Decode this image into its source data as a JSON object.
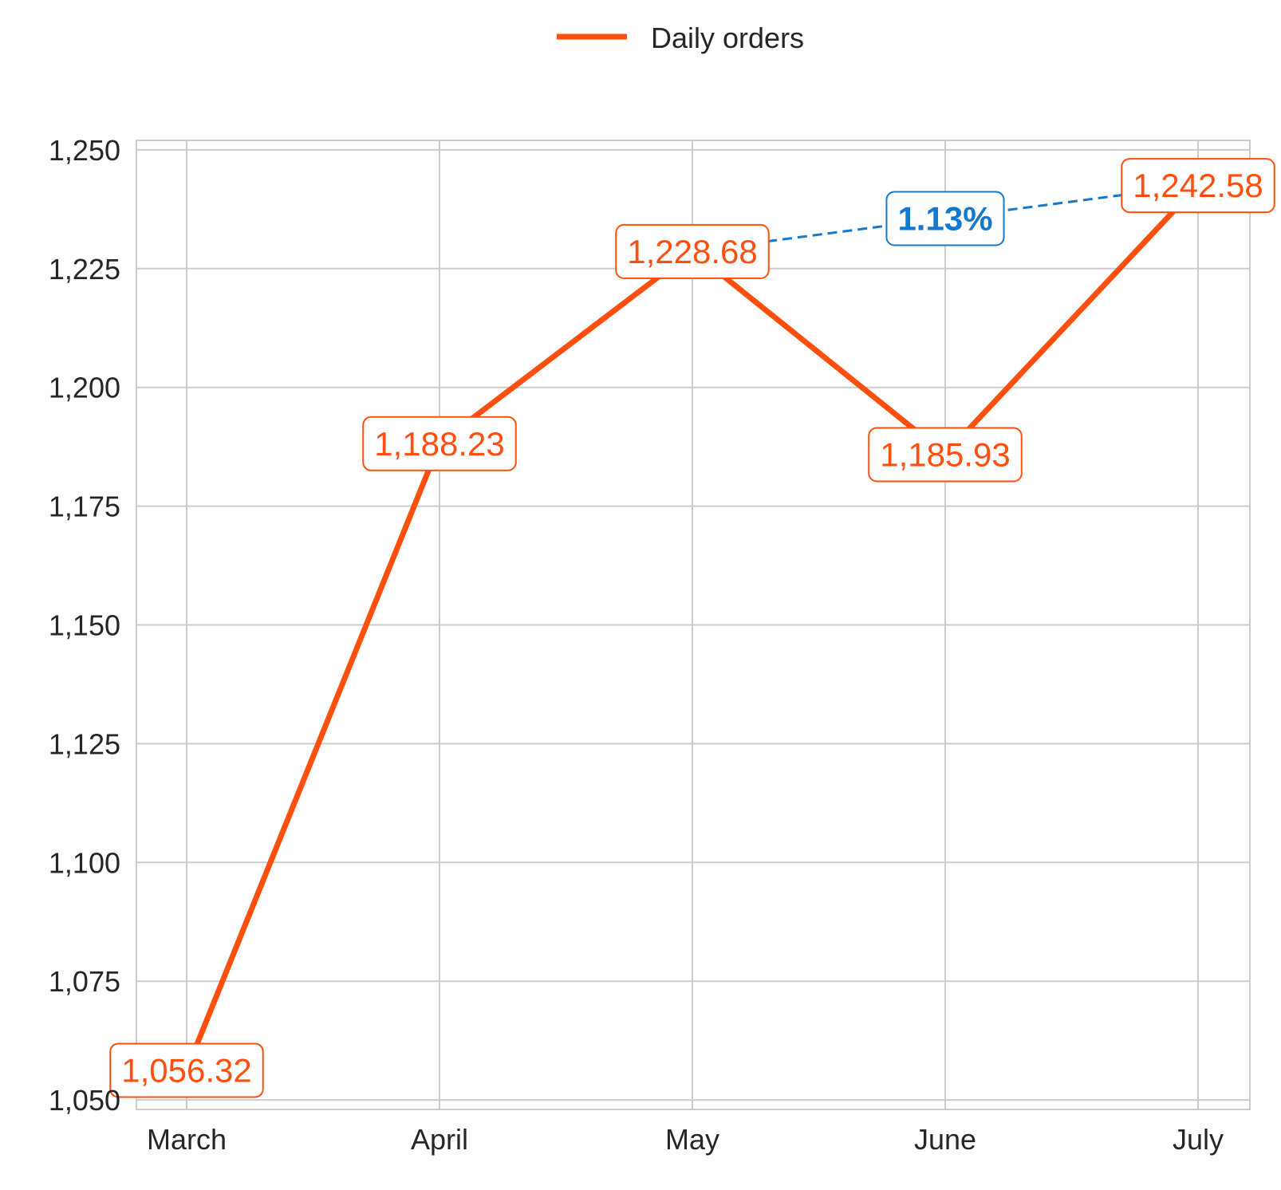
{
  "chart_data": {
    "type": "line",
    "categories": [
      "March",
      "April",
      "May",
      "June",
      "July"
    ],
    "series": [
      {
        "name": "Daily orders",
        "values": [
          1056.32,
          1188.23,
          1228.68,
          1185.93,
          1242.58
        ],
        "labels": [
          "1,056.32",
          "1,188.23",
          "1,228.68",
          "1,185.93",
          "1,242.58"
        ],
        "color": "#FF4F0F"
      }
    ],
    "ylim": [
      1048,
      1252
    ],
    "yticks": [
      1050,
      1075,
      1100,
      1125,
      1150,
      1175,
      1200,
      1225,
      1250
    ],
    "ytick_labels": [
      "1,050",
      "1,075",
      "1,100",
      "1,125",
      "1,150",
      "1,175",
      "1,200",
      "1,225",
      "1,250"
    ],
    "grid": true,
    "legend": {
      "position": "top-center"
    },
    "annotation": {
      "text": "1.13%",
      "from_category": "May",
      "to_category": "July",
      "color": "#1478CC",
      "style": "dashed"
    },
    "title": "",
    "xlabel": "",
    "ylabel": ""
  }
}
